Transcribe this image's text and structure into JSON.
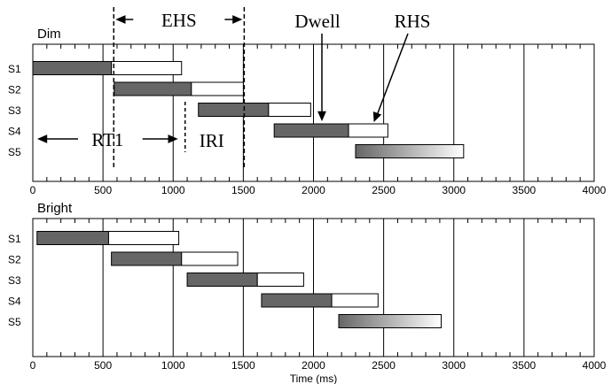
{
  "chart_data": [
    {
      "type": "bar",
      "panel_label": "Dim",
      "xlabel": "",
      "ylabel": "",
      "xlim": [
        0,
        4000
      ],
      "xticks": [
        0,
        500,
        1000,
        1500,
        2000,
        2500,
        3000,
        3500,
        4000
      ],
      "xtick_labels": [
        "0",
        "500",
        "1000",
        "1500",
        "2000",
        "2500",
        "3000",
        "3500",
        "4000"
      ],
      "categories": [
        "S1",
        "S2",
        "S3",
        "S4",
        "S5"
      ],
      "segments": [
        {
          "row": "S1",
          "dwell_start": 0,
          "dwell_end": 560,
          "rhs_end": 1060
        },
        {
          "row": "S2",
          "dwell_start": 580,
          "dwell_end": 1130,
          "rhs_end": 1500
        },
        {
          "row": "S3",
          "dwell_start": 1180,
          "dwell_end": 1680,
          "rhs_end": 1980
        },
        {
          "row": "S4",
          "dwell_start": 1720,
          "dwell_end": 2250,
          "rhs_end": 2530
        },
        {
          "row": "S5",
          "gradient_start": 2300,
          "gradient_end": 3070
        }
      ],
      "annotations": {
        "ehs": {
          "text": "EHS",
          "range": [
            580,
            1500
          ]
        },
        "rt1": {
          "text": "RT1",
          "range": [
            0,
            1060
          ]
        },
        "iri": {
          "text": "IRI",
          "x": 1060
        },
        "dwell": {
          "text": "Dwell",
          "target": [
            2060,
            "S4"
          ]
        },
        "rhs": {
          "text": "RHS",
          "target": [
            2430,
            "S4"
          ]
        }
      }
    },
    {
      "type": "bar",
      "panel_label": "Bright",
      "xlabel": "Time (ms)",
      "ylabel": "",
      "xlim": [
        0,
        4000
      ],
      "xticks": [
        0,
        500,
        1000,
        1500,
        2000,
        2500,
        3000,
        3500,
        4000
      ],
      "xtick_labels": [
        "0",
        "500",
        "1000",
        "1500",
        "2000",
        "2500",
        "3000",
        "3500",
        "4000"
      ],
      "categories": [
        "S1",
        "S2",
        "S3",
        "S4",
        "S5"
      ],
      "segments": [
        {
          "row": "S1",
          "dwell_start": 30,
          "dwell_end": 540,
          "rhs_end": 1040
        },
        {
          "row": "S2",
          "dwell_start": 560,
          "dwell_end": 1060,
          "rhs_end": 1460
        },
        {
          "row": "S3",
          "dwell_start": 1100,
          "dwell_end": 1600,
          "rhs_end": 1930
        },
        {
          "row": "S4",
          "dwell_start": 1630,
          "dwell_end": 2130,
          "rhs_end": 2460
        },
        {
          "row": "S5",
          "gradient_start": 2180,
          "gradient_end": 2910
        }
      ]
    }
  ],
  "colors": {
    "dwell_fill": "#666666",
    "rhs_fill": "#ffffff",
    "gradient_from": "#666666",
    "gradient_to": "#ffffff",
    "line": "#000000"
  }
}
